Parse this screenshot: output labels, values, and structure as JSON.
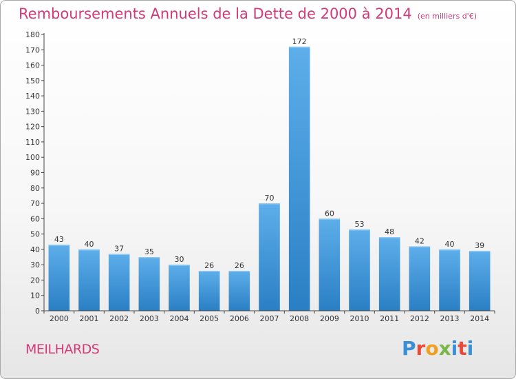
{
  "title": "Remboursements Annuels de la Dette de 2000 à 2014",
  "unit_note": "(en milliers d'€)",
  "commune": "MEILHARDS",
  "logo": {
    "letters": [
      "P",
      "r",
      "o",
      "x",
      "i",
      "t",
      "i"
    ],
    "colors": [
      "#3a8fd6",
      "#e84a3a",
      "#f0a020",
      "#7ab648",
      "#3a8fd6",
      "#e84a3a",
      "#3a8fd6"
    ]
  },
  "colors": {
    "accent": "#d23a78",
    "bar_top": "#5daeea",
    "bar_bottom": "#2a7fc4",
    "axis": "#444444",
    "grid": "#cccccc"
  },
  "chart_data": {
    "type": "bar",
    "categories": [
      "2000",
      "2001",
      "2002",
      "2003",
      "2004",
      "2005",
      "2006",
      "2007",
      "2008",
      "2009",
      "2010",
      "2011",
      "2012",
      "2013",
      "2014"
    ],
    "values": [
      43,
      40,
      37,
      35,
      30,
      26,
      26,
      70,
      172,
      60,
      53,
      48,
      42,
      40,
      39
    ],
    "ylim": [
      0,
      180
    ],
    "ytick_step": 10,
    "grid": false,
    "data_labels": true
  }
}
